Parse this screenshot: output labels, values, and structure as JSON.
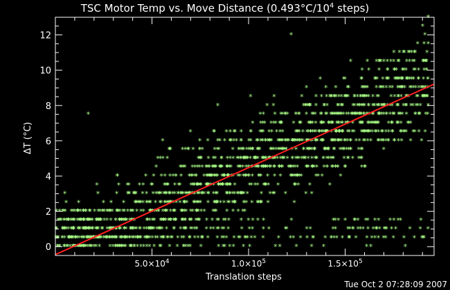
{
  "chart_data": {
    "type": "scatter",
    "title_main": "TSC Motor Temp vs. Move Distance (0.493°C/10",
    "title_sup": "4",
    "title_end": " steps)",
    "xlabel": "Translation steps",
    "ylabel": "ΔT (°C)",
    "xlim": [
      0,
      196000
    ],
    "ylim": [
      -0.5,
      13
    ],
    "x_ticks": [
      {
        "value": 50000,
        "mant": "5.0×10",
        "exp": "4"
      },
      {
        "value": 100000,
        "mant": "1.0×10",
        "exp": "5"
      },
      {
        "value": 150000,
        "mant": "1.5×10",
        "exp": "5"
      }
    ],
    "y_ticks": [
      0,
      2,
      4,
      6,
      8,
      10,
      12
    ],
    "fit_line": {
      "slope_per_1e4_steps": 0.493,
      "intercept": -0.45,
      "color": "#ff2020"
    },
    "point_color": "#aaff88",
    "outliers": [
      {
        "x": 17000,
        "y": 7.5
      },
      {
        "x": 84000,
        "y": 8.0
      },
      {
        "x": 101000,
        "y": 8.5
      },
      {
        "x": 122000,
        "y": 12.0
      },
      {
        "x": 82000,
        "y": 6.5
      },
      {
        "x": 53000,
        "y": 5.0
      },
      {
        "x": 71000,
        "y": 4.0
      },
      {
        "x": 32000,
        "y": 4.0
      },
      {
        "x": 38000,
        "y": 3.5
      },
      {
        "x": 95000,
        "y": 5.5
      },
      {
        "x": 140000,
        "y": 9.0
      },
      {
        "x": 160000,
        "y": 8.0
      },
      {
        "x": 110000,
        "y": 6.0
      },
      {
        "x": 190000,
        "y": 12.5
      },
      {
        "x": 193000,
        "y": 13.0
      }
    ]
  },
  "footer": {
    "timestamp": "Tue Oct  2 07:28:09 2007"
  }
}
